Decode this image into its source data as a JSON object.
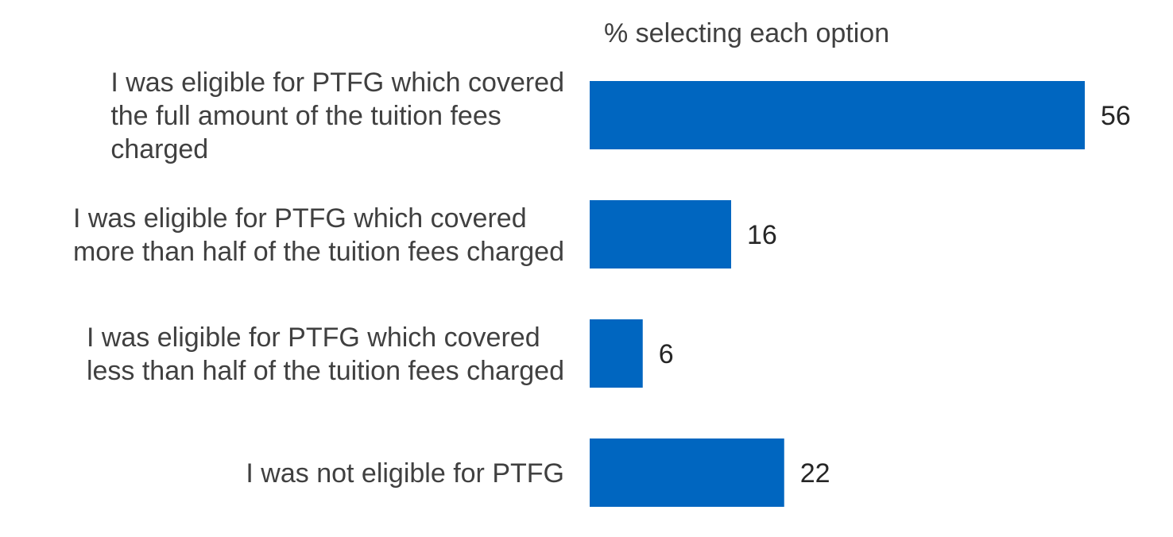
{
  "chart_data": {
    "type": "bar",
    "orientation": "horizontal",
    "axis_caption": "% selecting each option",
    "categories": [
      [
        "I was eligible for PTFG which covered",
        "the full amount of the tuition fees",
        "charged"
      ],
      [
        "I was eligible for PTFG which covered",
        "more than half of the tuition fees charged"
      ],
      [
        "I was eligible for PTFG which covered",
        "less than half of the tuition fees charged"
      ],
      [
        "I was not eligible for PTFG"
      ]
    ],
    "values": [
      56,
      16,
      6,
      22
    ],
    "value_labels": [
      "56",
      "16",
      "6",
      "22"
    ],
    "xlim": [
      0,
      56
    ],
    "grid": false,
    "legend": "none",
    "colors": {
      "bar": "#0066C0",
      "label": "#404040",
      "value": "#262626"
    }
  }
}
